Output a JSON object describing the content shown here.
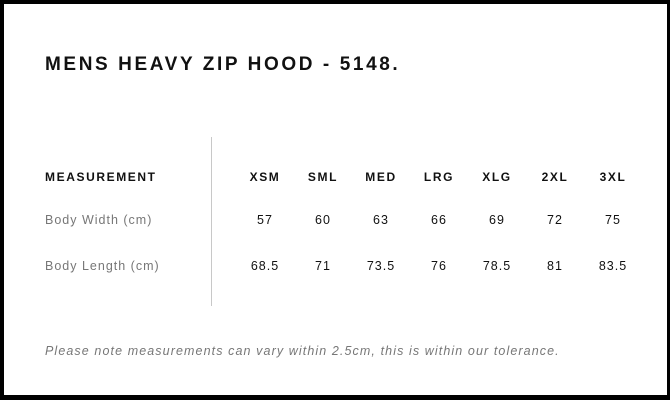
{
  "title": "MENS HEAVY ZIP HOOD - 5148.",
  "table": {
    "header_label": "MEASUREMENT",
    "sizes": [
      "XSM",
      "SML",
      "MED",
      "LRG",
      "XLG",
      "2XL",
      "3XL"
    ],
    "rows": [
      {
        "label": "Body Width (cm)",
        "values": [
          "57",
          "60",
          "63",
          "66",
          "69",
          "72",
          "75"
        ]
      },
      {
        "label": "Body Length (cm)",
        "values": [
          "68.5",
          "71",
          "73.5",
          "76",
          "78.5",
          "81",
          "83.5"
        ]
      }
    ]
  },
  "note": "Please note measurements can vary within 2.5cm, this is within our tolerance."
}
